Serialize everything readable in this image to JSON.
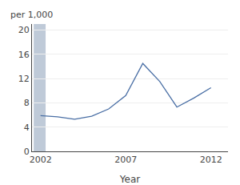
{
  "chart_data": {
    "type": "line",
    "x": [
      2002,
      2003,
      2004,
      2005,
      2006,
      2007,
      2008,
      2009,
      2010,
      2011,
      2012
    ],
    "values": [
      5.9,
      5.7,
      5.3,
      5.8,
      7.0,
      9.2,
      14.5,
      11.5,
      7.3,
      8.8,
      10.5
    ],
    "color": "#4a6fa5",
    "xlabel": "Year",
    "ylabel": "per 1,000",
    "xlim": [
      2001.5,
      2013
    ],
    "xticks": [
      2002,
      2007,
      2012
    ],
    "ylim": [
      0,
      21
    ],
    "yticks": [
      0,
      4,
      8,
      12,
      16,
      20
    ],
    "grid": true,
    "shaded_region": {
      "x": [
        2001.6,
        2002.3
      ],
      "color": "#b8c4d4"
    }
  }
}
